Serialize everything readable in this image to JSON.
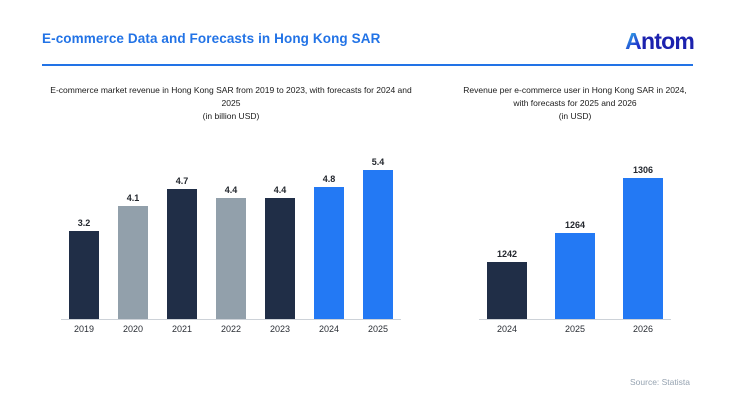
{
  "header": {
    "title": "E-commerce Data and Forecasts in Hong Kong SAR",
    "logo": {
      "text": "Antom",
      "first": "A",
      "rest": "ntom"
    },
    "accent_color": "#2273e6"
  },
  "footer": {
    "source": "Source: Statista"
  },
  "palette": {
    "dark_navy": "#202e47",
    "gray": "#92a0ab",
    "bright_blue": "#2379f4",
    "axis_line": "#cdd2d8"
  },
  "chart_data": [
    {
      "type": "bar",
      "title": "E-commerce market revenue in Hong Kong SAR from 2019 to 2023, with forecasts for 2024 and 2025 (in billion USD)",
      "title_lines": [
        "E-commerce market revenue in Hong Kong SAR from 2019 to 2023, with forecasts for 2024 and",
        "2025",
        "(in billion USD)"
      ],
      "categories": [
        "2019",
        "2020",
        "2021",
        "2022",
        "2023",
        "2024",
        "2025"
      ],
      "values": [
        3.2,
        4.1,
        4.7,
        4.4,
        4.4,
        4.8,
        5.4
      ],
      "value_labels": [
        "3.2",
        "4.1",
        "4.7",
        "4.4",
        "4.4",
        "4.8",
        "5.4"
      ],
      "colors": [
        "#202e47",
        "#92a0ab",
        "#202e47",
        "#92a0ab",
        "#202e47",
        "#2379f4",
        "#2379f4"
      ],
      "xlabel": "",
      "ylabel": "",
      "ylim": [
        0,
        5.8
      ],
      "grid": false,
      "legend": false,
      "data_labels_position": "above-bars"
    },
    {
      "type": "bar",
      "title": "Revenue per e-commerce user in Hong Kong SAR in 2024, with forecasts for 2025 and 2026 (in USD)",
      "title_lines": [
        "Revenue per e-commerce user in Hong Kong SAR in 2024,",
        "with forecasts for 2025 and 2026",
        "(in USD)"
      ],
      "categories": [
        "2024",
        "2025",
        "2026"
      ],
      "values": [
        1242,
        1264,
        1306
      ],
      "value_labels": [
        "1242",
        "1264",
        "1306"
      ],
      "colors": [
        "#202e47",
        "#2379f4",
        "#2379f4"
      ],
      "xlabel": "",
      "ylabel": "",
      "ylim": [
        1199,
        1320
      ],
      "grid": false,
      "legend": false,
      "data_labels_position": "above-bars"
    }
  ]
}
